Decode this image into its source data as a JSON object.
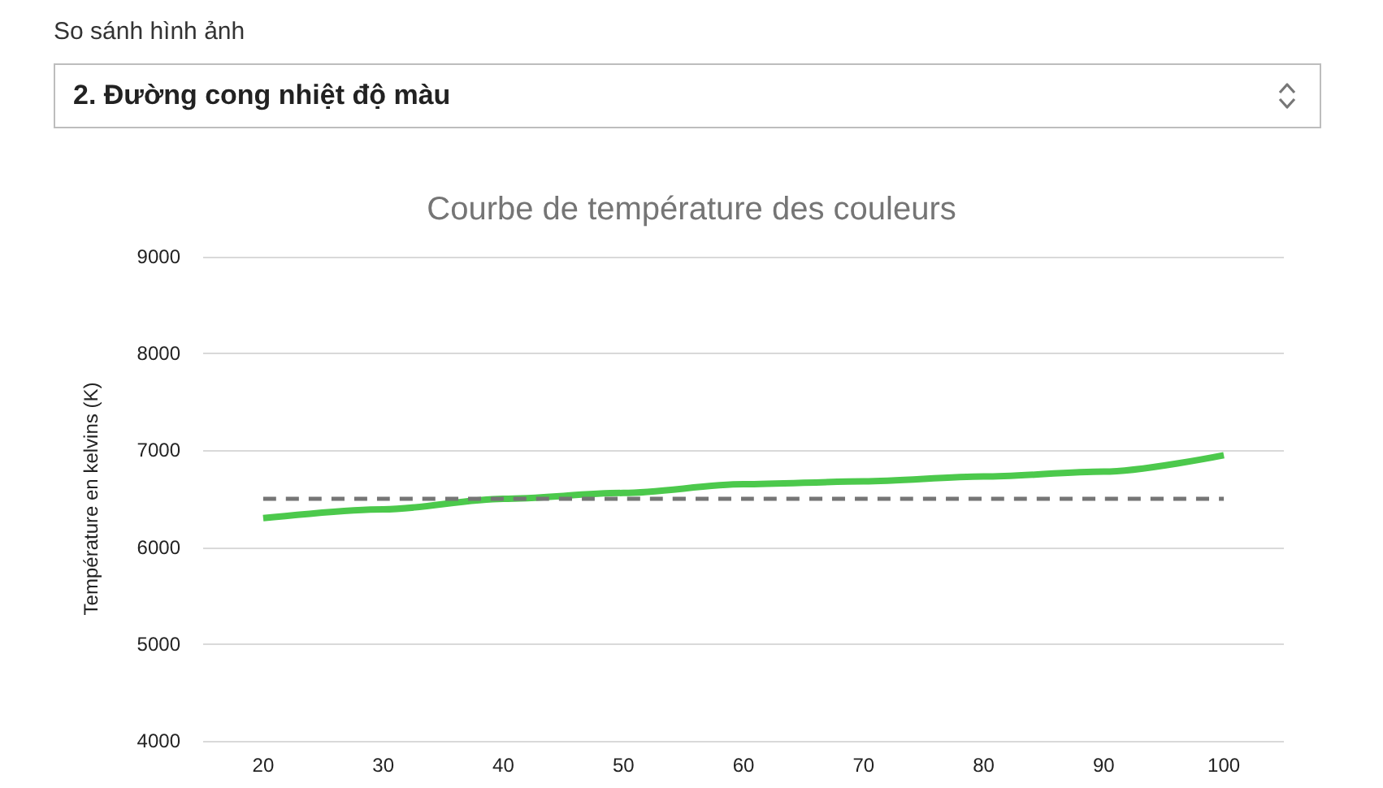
{
  "chart_data": {
    "type": "line",
    "title": "Courbe de température des couleurs",
    "ylabel": "Température en kelvins (K)",
    "annotations": [
      "So sánh hình ảnh",
      "2. Đường cong nhiệt độ màu"
    ],
    "categories": [
      "20",
      "30",
      "40",
      "50",
      "60",
      "70",
      "80",
      "90",
      "100"
    ],
    "series": [
      {
        "color": "#4cc94c",
        "line_style": "solid",
        "values": [
          6300,
          6390,
          6500,
          6560,
          6650,
          6680,
          6730,
          6780,
          6950
        ]
      },
      {
        "color": "#757575",
        "line_style": "dashed",
        "values": [
          6500,
          6500,
          6500,
          6500,
          6500,
          6500,
          6500,
          6500,
          6500
        ]
      }
    ],
    "ylim": [
      4000,
      9000
    ],
    "yticks": [
      4000,
      5000,
      6000,
      7000,
      8000,
      9000
    ],
    "grid": "y",
    "marker": "none"
  }
}
